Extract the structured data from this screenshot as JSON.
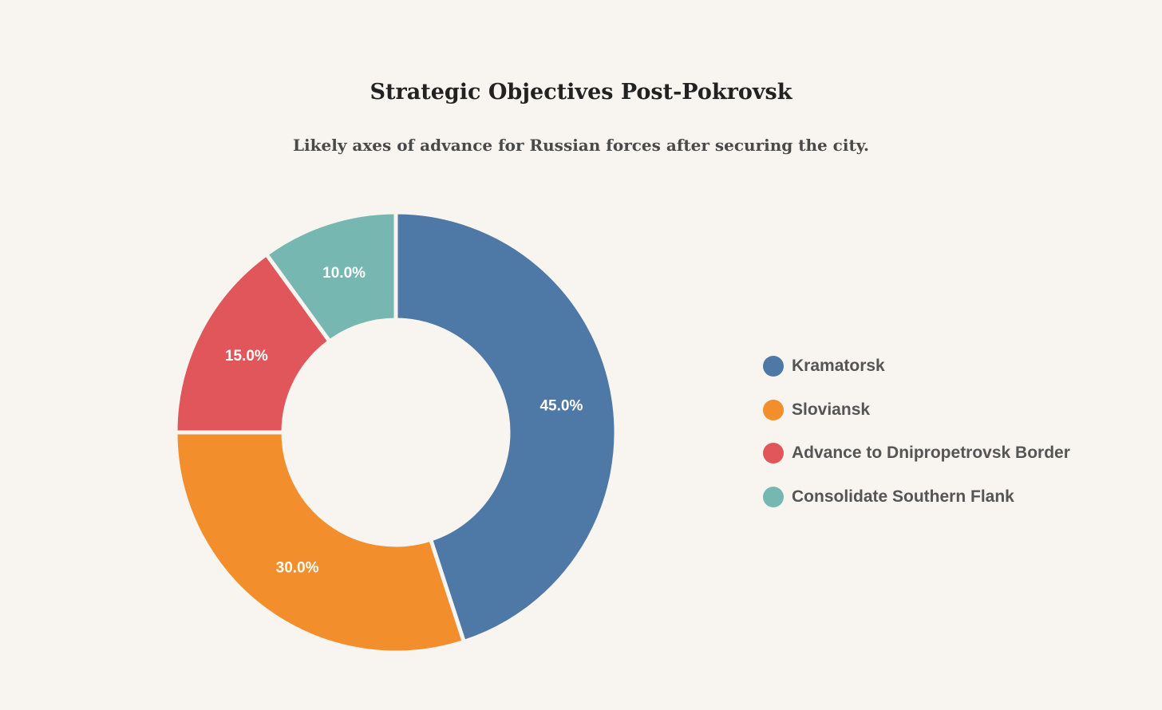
{
  "chart_data": {
    "type": "pie",
    "variant": "donut",
    "title": "Strategic Objectives Post-Pokrovsk",
    "subtitle": "Likely axes of advance for Russian forces after securing the city.",
    "categories": [
      "Kramatorsk",
      "Sloviansk",
      "Advance to Dnipropetrovsk Border",
      "Consolidate Southern Flank"
    ],
    "values": [
      45,
      30,
      15,
      10
    ],
    "labels": [
      "45.0%",
      "30.0%",
      "15.0%",
      "10.0%"
    ],
    "colors": [
      "#4e78a6",
      "#f28e2c",
      "#e0565b",
      "#76b7b2"
    ],
    "legend_position": "right"
  }
}
